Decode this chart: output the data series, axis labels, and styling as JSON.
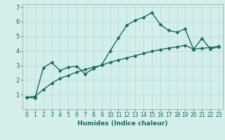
{
  "title": "",
  "xlabel": "Humidex (Indice chaleur)",
  "bg_color": "#d4eeec",
  "line_color": "#1a6b5a",
  "grid_color": "#b8dede",
  "xlim": [
    -0.5,
    23.5
  ],
  "ylim": [
    0,
    7.2
  ],
  "xticks": [
    0,
    1,
    2,
    3,
    4,
    5,
    6,
    7,
    8,
    9,
    10,
    11,
    12,
    13,
    14,
    15,
    16,
    17,
    18,
    19,
    20,
    21,
    22,
    23
  ],
  "yticks": [
    1,
    2,
    3,
    4,
    5,
    6,
    7
  ],
  "series1_x": [
    0,
    1,
    2,
    3,
    4,
    5,
    6,
    7,
    8,
    9,
    10,
    11,
    12,
    13,
    14,
    15,
    16,
    17,
    18,
    19,
    20,
    21,
    22,
    23
  ],
  "series1_y": [
    0.8,
    0.78,
    2.85,
    3.2,
    2.65,
    2.88,
    2.95,
    2.42,
    2.78,
    3.05,
    4.0,
    4.9,
    5.75,
    6.1,
    6.3,
    6.62,
    5.82,
    5.4,
    5.28,
    5.5,
    4.1,
    4.85,
    4.15,
    4.25
  ],
  "series2_x": [
    0,
    1,
    2,
    3,
    4,
    5,
    6,
    7,
    8,
    9,
    10,
    11,
    12,
    13,
    14,
    15,
    16,
    17,
    18,
    19,
    20,
    21,
    22,
    23
  ],
  "series2_y": [
    0.82,
    0.88,
    1.35,
    1.78,
    2.12,
    2.32,
    2.55,
    2.72,
    2.88,
    3.02,
    3.22,
    3.38,
    3.52,
    3.67,
    3.82,
    3.97,
    4.08,
    4.18,
    4.28,
    4.38,
    4.12,
    4.18,
    4.22,
    4.32
  ],
  "marker_size": 2.5,
  "linewidth": 1.0,
  "tick_fontsize": 5.5,
  "xlabel_fontsize": 6.5
}
